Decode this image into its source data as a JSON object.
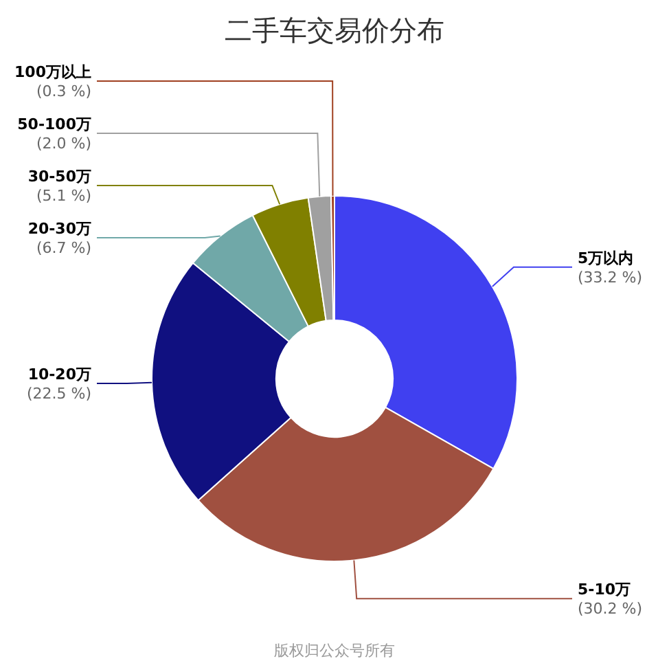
{
  "chart_data": {
    "type": "donut",
    "title": "二手车交易价分布",
    "categories": [
      "5万以内",
      "5-10万",
      "10-20万",
      "20-30万",
      "30-50万",
      "50-100万",
      "100万以上"
    ],
    "values": [
      33.2,
      30.2,
      22.5,
      6.7,
      5.1,
      2.0,
      0.3
    ],
    "colors": [
      "#4040f0",
      "#a05040",
      "#101080",
      "#70a8a8",
      "#808000",
      "#a0a0a0",
      "#a04020"
    ],
    "value_labels": [
      "(33.2 %)",
      "(30.2 %)",
      "(22.5 %)",
      "(6.7 %)",
      "(5.1 %)",
      "(2.0 %)",
      "(0.3 %)"
    ],
    "legend": false,
    "annotations": [
      "版权归公众号所有"
    ]
  }
}
